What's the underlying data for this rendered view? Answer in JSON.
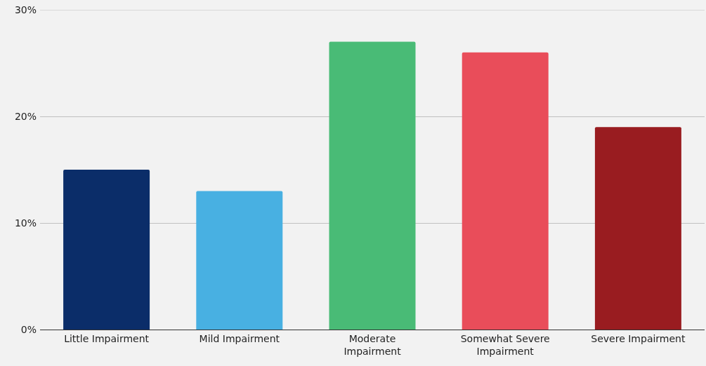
{
  "chart_data": {
    "type": "bar",
    "categories": [
      "Little Impairment",
      "Mild Impairment",
      "Moderate Impairment",
      "Somewhat Severe Impairment",
      "Severe Impairment"
    ],
    "values": [
      15,
      13,
      27,
      26,
      19
    ],
    "colors": [
      "#0b2d69",
      "#48b0e2",
      "#49bb76",
      "#e94d5a",
      "#991c20"
    ],
    "ylim": [
      0,
      30
    ],
    "yticks": [
      {
        "value": 0,
        "label": "0%"
      },
      {
        "value": 10,
        "label": "10%"
      },
      {
        "value": 20,
        "label": "20%"
      },
      {
        "value": 30,
        "label": "30%"
      }
    ],
    "grid": "y"
  }
}
